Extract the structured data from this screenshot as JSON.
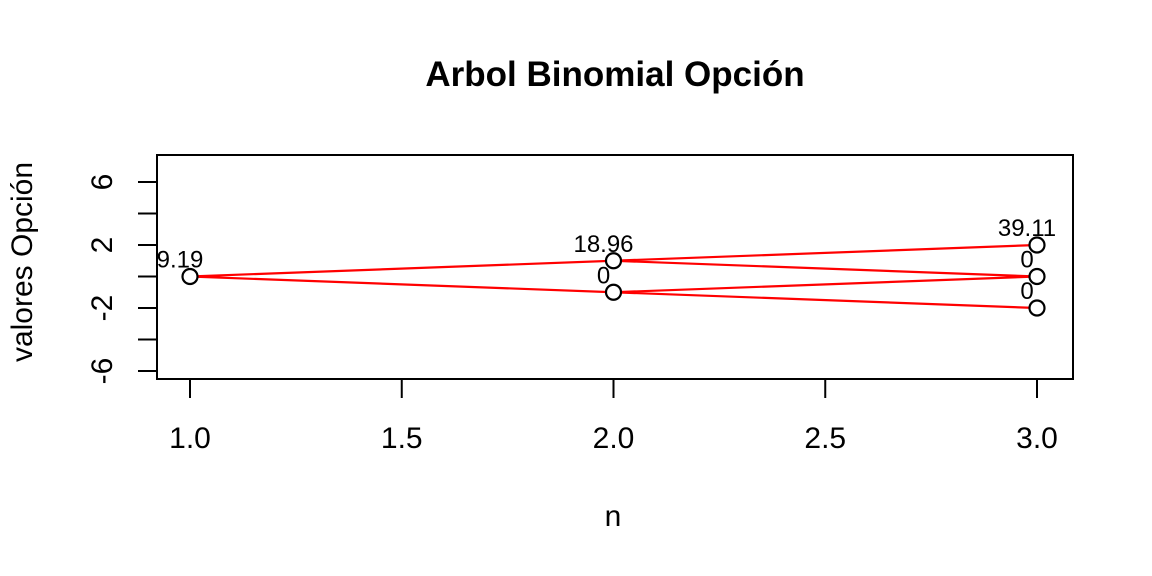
{
  "chart_data": {
    "type": "scatter",
    "title": "Arbol Binomial Opción",
    "xlabel": "n",
    "ylabel": "valores Opción",
    "grid": false,
    "legend": null,
    "xlim": [
      0.92,
      3.08
    ],
    "ylim": [
      -6.5,
      7.7
    ],
    "x_ticks": [
      {
        "value": 1.0,
        "label": "1.0"
      },
      {
        "value": 1.5,
        "label": "1.5"
      },
      {
        "value": 2.0,
        "label": "2.0"
      },
      {
        "value": 2.5,
        "label": "2.5"
      },
      {
        "value": 3.0,
        "label": "3.0"
      }
    ],
    "y_tick_values": [
      6,
      4,
      2,
      0,
      -2,
      -4,
      -6
    ],
    "y_tick_labels": [
      {
        "value": 6,
        "label": "6"
      },
      {
        "value": 2,
        "label": "2"
      },
      {
        "value": -2,
        "label": "-2"
      },
      {
        "value": -6,
        "label": "-6"
      }
    ],
    "nodes": [
      {
        "step": 1,
        "level": 0,
        "option_value": "9.19"
      },
      {
        "step": 2,
        "level": 1,
        "option_value": "18.96"
      },
      {
        "step": 2,
        "level": -1,
        "option_value": "0"
      },
      {
        "step": 3,
        "level": 2,
        "option_value": "39.11"
      },
      {
        "step": 3,
        "level": 0,
        "option_value": "0"
      },
      {
        "step": 3,
        "level": -2,
        "option_value": "0"
      }
    ],
    "edges": [
      [
        0,
        1
      ],
      [
        0,
        2
      ],
      [
        1,
        3
      ],
      [
        1,
        4
      ],
      [
        2,
        4
      ],
      [
        2,
        5
      ]
    ],
    "colors": {
      "edge": "#FF0000",
      "node_stroke": "#000000",
      "node_fill": "#FFFFFF",
      "axis": "#000000",
      "text": "#000000",
      "background": "#FFFFFF"
    }
  }
}
